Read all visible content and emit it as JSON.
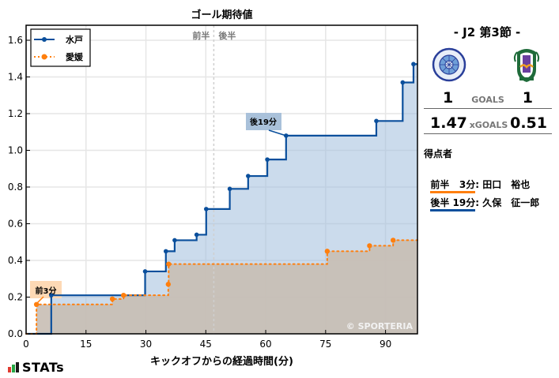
{
  "chart_data": {
    "type": "line",
    "subtype": "step-cumulative",
    "title": "ゴール期待値",
    "xlabel": "キックオフからの経過時間(分)",
    "ylabel": "",
    "xlim": [
      0,
      98
    ],
    "ylim": [
      0.0,
      1.68
    ],
    "xticks": [
      0,
      15,
      30,
      45,
      60,
      75,
      90
    ],
    "yticks": [
      0.0,
      0.2,
      0.4,
      0.6,
      0.8,
      1.0,
      1.2,
      1.4,
      1.6
    ],
    "grid": true,
    "legend_position": "upper left",
    "halftime_marker": {
      "x": 47,
      "labels": [
        "前半",
        "後半"
      ]
    },
    "series": [
      {
        "name": "水戸",
        "color": "#0a4f9c",
        "fill": "#c8d8e8",
        "linestyle": "solid",
        "x": [
          6.3,
          29.8,
          35.0,
          37.2,
          42.7,
          45.1,
          51.0,
          55.6,
          60.4,
          65.1,
          87.7,
          94.3,
          97.0
        ],
        "y": [
          0.21,
          0.34,
          0.45,
          0.51,
          0.54,
          0.68,
          0.79,
          0.86,
          0.95,
          1.08,
          1.16,
          1.37,
          1.47
        ]
      },
      {
        "name": "愛媛",
        "color": "#ff7f0e",
        "fill": "#cdc6c0",
        "linestyle": "dotted",
        "x": [
          2.6,
          21.6,
          24.4,
          35.6,
          35.7,
          75.4,
          86.0,
          91.9
        ],
        "y": [
          0.16,
          0.19,
          0.21,
          0.27,
          0.38,
          0.45,
          0.48,
          0.51
        ]
      }
    ],
    "annotations": [
      {
        "text": "前3分",
        "team": "愛媛",
        "x": 2.6,
        "y": 0.16
      },
      {
        "text": "後19分",
        "team": "水戸",
        "x": 65.1,
        "y": 1.08
      }
    ]
  },
  "plot": {
    "title": "ゴール期待値",
    "xlabel": "キックオフからの経過時間(分)",
    "half_first": "前半",
    "half_second": "後半",
    "watermark": "© SPORTERIA",
    "legend": [
      {
        "label": "水戸"
      },
      {
        "label": "愛媛"
      }
    ],
    "xtick_labels": [
      "0",
      "15",
      "30",
      "45",
      "60",
      "75",
      "90"
    ],
    "ytick_labels": [
      "0.0",
      "0.2",
      "0.4",
      "0.6",
      "0.8",
      "1.0",
      "1.2",
      "1.4",
      "1.6"
    ],
    "annotation_first": "前3分",
    "annotation_second": "後19分"
  },
  "brand": {
    "name": "STATs",
    "colors": [
      "#e03a2f",
      "#27a844",
      "#1a1a1a"
    ]
  },
  "match": {
    "title": "-  J2 第3節  -",
    "home": {
      "name": "水戸",
      "goals": "1",
      "xgoals": "1.47"
    },
    "away": {
      "name": "愛媛",
      "goals": "1",
      "xgoals": "0.51"
    },
    "goals_label": "GOALS",
    "xgoals_label": "xGOALS",
    "scorers_title": "得点者",
    "scorers": [
      {
        "time": "前半   3分",
        "sep": ": ",
        "name": "田口　裕也",
        "color": "#ff7f0e"
      },
      {
        "time": "後半 19分",
        "sep": ": ",
        "name": "久保　征一郎",
        "color": "#0a4f9c"
      }
    ]
  }
}
